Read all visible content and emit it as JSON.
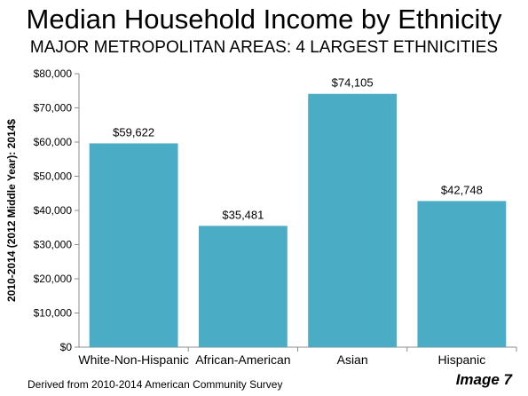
{
  "header": {
    "title": "Median Household Income by Ethnicity",
    "subtitle": "MAJOR METROPOLITAN AREAS: 4 LARGEST ETHNICITIES"
  },
  "footer": {
    "source": "Derived from 2010-2014 American Community Survey",
    "image_label": "Image 7"
  },
  "chart_data": {
    "type": "bar",
    "title": "Median Household Income by Ethnicity",
    "subtitle": "MAJOR METROPOLITAN AREAS: 4 LARGEST ETHNICITIES",
    "xlabel": "",
    "ylabel": "2010-2014 (2012 Middle Year): 2014$",
    "categories": [
      "White-Non-Hispanic",
      "African-American",
      "Asian",
      "Hispanic"
    ],
    "values": [
      59622,
      35481,
      74105,
      42748
    ],
    "data_labels": [
      "$59,622",
      "$35,481",
      "$74,105",
      "$42,748"
    ],
    "ylim": [
      0,
      80000
    ],
    "yticks": [
      0,
      10000,
      20000,
      30000,
      40000,
      50000,
      60000,
      70000,
      80000
    ],
    "ytick_labels": [
      "$0",
      "$10,000",
      "$20,000",
      "$30,000",
      "$40,000",
      "$50,000",
      "$60,000",
      "$70,000",
      "$80,000"
    ],
    "bar_color": "#4bacc6",
    "grid": false,
    "legend": "none"
  }
}
